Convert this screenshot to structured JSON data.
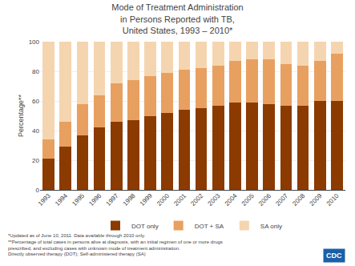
{
  "chart_data": {
    "type": "bar",
    "stacked": true,
    "title": "Mode of Treatment Administration\nin Persons Reported with TB,\nUnited States, 1993 – 2010*",
    "ylabel": "Percentage**",
    "categories": [
      "1993",
      "1994",
      "1995",
      "1996",
      "1997",
      "1998",
      "1999",
      "2000",
      "2001",
      "2002",
      "2003",
      "2004",
      "2005",
      "2006",
      "2007",
      "2008",
      "2009",
      "2010"
    ],
    "series": [
      {
        "name": "DOT only",
        "color": "#8B3A00",
        "values": [
          21,
          29,
          37,
          42,
          46,
          47,
          50,
          52,
          54,
          55,
          57,
          59,
          59,
          58,
          57,
          57,
          60,
          60
        ]
      },
      {
        "name": "DOT + SA",
        "color": "#E8A060",
        "values": [
          13,
          17,
          21,
          22,
          26,
          27,
          27,
          27,
          27,
          27,
          27,
          28,
          29,
          30,
          28,
          27,
          27,
          32
        ]
      },
      {
        "name": "SA only",
        "color": "#F5D5B0",
        "values": [
          66,
          54,
          42,
          36,
          28,
          26,
          23,
          21,
          19,
          18,
          16,
          13,
          12,
          12,
          15,
          16,
          13,
          8
        ]
      }
    ],
    "ylim": [
      0,
      100
    ],
    "yticks": [
      0,
      20,
      40,
      60,
      80,
      100
    ],
    "grid": true,
    "legend": "bottom",
    "annotations": [
      "*Updated as of June 10, 2011. Data available through 2010 only.",
      "**Percentage of total cases in persons alive at diagnosis, with an initial regimen of one or more drugs",
      "prescribed, and excluding cases with unknown mode of treatment administration.",
      "Directly observed therapy (DOT); Self-administered therapy (SA)",
      "CDC"
    ]
  }
}
